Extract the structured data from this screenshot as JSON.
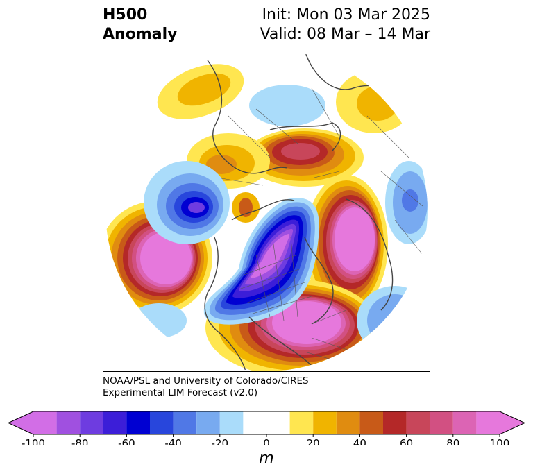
{
  "title": {
    "left_line1": "H500",
    "left_line2": "Anomaly",
    "right_line1": "Init: Mon 03 Mar 2025",
    "right_line2": "Valid: 08 Mar – 14 Mar"
  },
  "credit": {
    "line1": "NOAA/PSL and University of Colorado/CIRES",
    "line2": "Experimental LIM Forecast (v2.0)"
  },
  "colorbar": {
    "units": "m",
    "levels": [
      -100,
      -90,
      -80,
      -70,
      -60,
      -50,
      -40,
      -30,
      -20,
      -10,
      10,
      20,
      30,
      40,
      50,
      60,
      70,
      80,
      90,
      100
    ],
    "tick_labels": [
      "-100",
      "-80",
      "-60",
      "-40",
      "-20",
      "0",
      "20",
      "40",
      "60",
      "80",
      "100"
    ],
    "colors": [
      "#d26ee6",
      "#a050e0",
      "#6e3ce0",
      "#3c1ed8",
      "#0000d2",
      "#2846dc",
      "#5078e6",
      "#78aaf0",
      "#aadcfa",
      "#ffffff",
      "#ffe650",
      "#f0b400",
      "#e08c10",
      "#c85a18",
      "#b42828",
      "#c8465a",
      "#d25082",
      "#dc64b4",
      "#e678dc"
    ],
    "extend": "both"
  },
  "map": {
    "projection": "north-polar-stereographic",
    "variable": "500 hPa geopotential height anomaly",
    "features": [
      {
        "name": "positive-anomaly-north-pacific",
        "sign": "positive",
        "peak_m": 100
      },
      {
        "name": "positive-anomaly-europe",
        "sign": "positive",
        "peak_m": 100
      },
      {
        "name": "positive-anomaly-eastern-north-america",
        "sign": "positive",
        "peak_m": 100
      },
      {
        "name": "positive-anomaly-arctic-canada",
        "sign": "positive",
        "peak_m": 60
      },
      {
        "name": "negative-anomaly-north-america-arctic",
        "sign": "negative",
        "peak_m": -90
      },
      {
        "name": "negative-anomaly-east-asia",
        "sign": "negative",
        "peak_m": -60
      },
      {
        "name": "negative-anomaly-north-africa",
        "sign": "negative",
        "peak_m": -40
      },
      {
        "name": "negative-anomaly-western-siberia",
        "sign": "negative",
        "peak_m": -20
      }
    ]
  }
}
